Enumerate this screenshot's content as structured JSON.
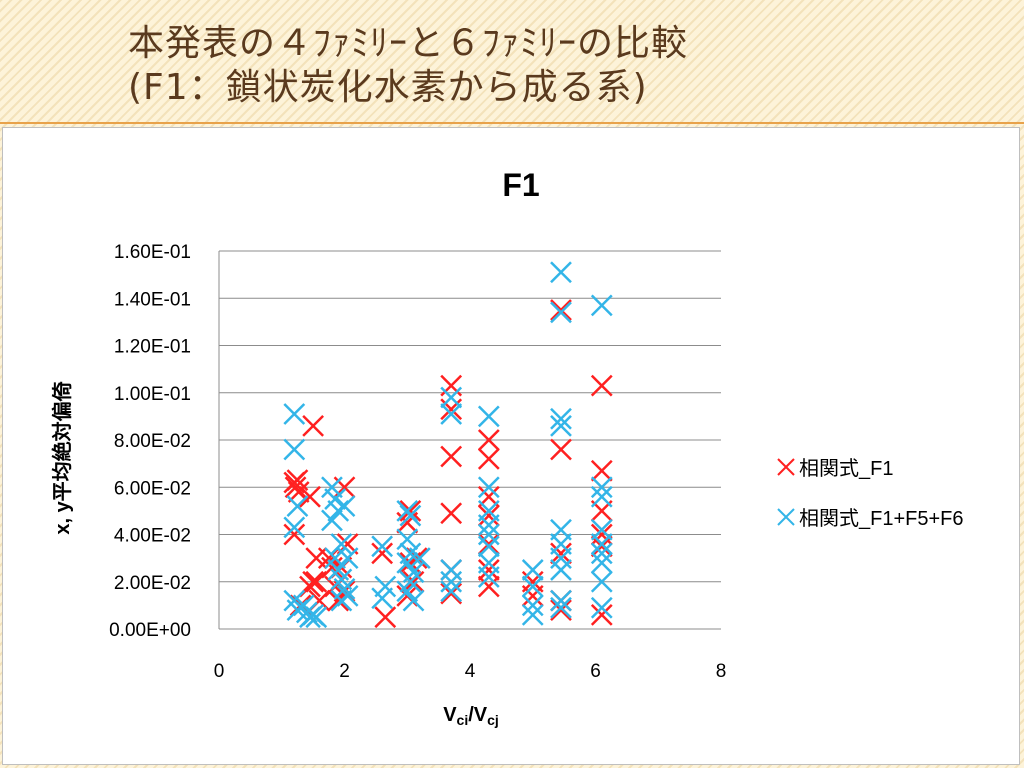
{
  "slide": {
    "title_line1": "本発表の４ﾌｧﾐﾘｰと６ﾌｧﾐﾘｰの比較",
    "title_line2": "(F1：鎖状炭化水素から成る系)"
  },
  "colors": {
    "title": "#5a3a1e",
    "accent_rule": "#e8a24a",
    "series_f1": "#ff2020",
    "series_f1f5f6": "#33b5e8"
  },
  "chart_data": {
    "type": "scatter",
    "title": "F1",
    "xlabel": "Vci/Vcj",
    "ylabel": "x, y平均絶対偏倚",
    "xlim": [
      0,
      8
    ],
    "ylim": [
      0,
      0.16
    ],
    "x_ticks": [
      "0",
      "2",
      "4",
      "6",
      "8"
    ],
    "y_ticks": [
      "0.00E+00",
      "2.00E-02",
      "4.00E-02",
      "6.00E-02",
      "8.00E-02",
      "1.00E-01",
      "1.20E-01",
      "1.40E-01",
      "1.60E-01"
    ],
    "grid": "horizontal",
    "legend_position": "right",
    "marker": "×",
    "series": [
      {
        "name": "相関式_F1",
        "color": "#ff2020",
        "points": [
          [
            1.2,
            0.062
          ],
          [
            1.22,
            0.06
          ],
          [
            1.25,
            0.063
          ],
          [
            1.27,
            0.058
          ],
          [
            1.2,
            0.04
          ],
          [
            1.3,
            0.01
          ],
          [
            1.5,
            0.086
          ],
          [
            1.45,
            0.056
          ],
          [
            1.55,
            0.03
          ],
          [
            1.5,
            0.02
          ],
          [
            1.45,
            0.018
          ],
          [
            1.6,
            0.012
          ],
          [
            1.55,
            0.02
          ],
          [
            1.75,
            0.03
          ],
          [
            1.8,
            0.026
          ],
          [
            1.85,
            0.018
          ],
          [
            1.9,
            0.012
          ],
          [
            1.95,
            0.026
          ],
          [
            2.0,
            0.06
          ],
          [
            2.05,
            0.036
          ],
          [
            2.0,
            0.016
          ],
          [
            2.6,
            0.032
          ],
          [
            2.65,
            0.005
          ],
          [
            3.05,
            0.05
          ],
          [
            3.0,
            0.045
          ],
          [
            3.05,
            0.028
          ],
          [
            3.1,
            0.02
          ],
          [
            3.0,
            0.014
          ],
          [
            3.15,
            0.03
          ],
          [
            3.7,
            0.103
          ],
          [
            3.7,
            0.093
          ],
          [
            3.7,
            0.073
          ],
          [
            3.7,
            0.049
          ],
          [
            3.7,
            0.025
          ],
          [
            3.7,
            0.015
          ],
          [
            4.3,
            0.08
          ],
          [
            4.3,
            0.072
          ],
          [
            4.3,
            0.056
          ],
          [
            4.3,
            0.048
          ],
          [
            4.3,
            0.036
          ],
          [
            4.3,
            0.025
          ],
          [
            4.3,
            0.018
          ],
          [
            5.0,
            0.02
          ],
          [
            5.0,
            0.014
          ],
          [
            5.45,
            0.135
          ],
          [
            5.45,
            0.076
          ],
          [
            5.45,
            0.032
          ],
          [
            5.45,
            0.012
          ],
          [
            5.45,
            0.008
          ],
          [
            6.1,
            0.103
          ],
          [
            6.1,
            0.067
          ],
          [
            6.1,
            0.05
          ],
          [
            6.1,
            0.04
          ],
          [
            6.1,
            0.035
          ],
          [
            6.1,
            0.006
          ]
        ]
      },
      {
        "name": "相関式_F1+F5+F6",
        "color": "#33b5e8",
        "points": [
          [
            1.2,
            0.091
          ],
          [
            1.2,
            0.076
          ],
          [
            1.25,
            0.052
          ],
          [
            1.2,
            0.043
          ],
          [
            1.2,
            0.012
          ],
          [
            1.25,
            0.008
          ],
          [
            1.35,
            0.01
          ],
          [
            1.4,
            0.007
          ],
          [
            1.45,
            0.005
          ],
          [
            1.5,
            0.006
          ],
          [
            1.55,
            0.005
          ],
          [
            1.8,
            0.06
          ],
          [
            1.85,
            0.055
          ],
          [
            1.9,
            0.05
          ],
          [
            1.8,
            0.046
          ],
          [
            2.0,
            0.052
          ],
          [
            1.95,
            0.036
          ],
          [
            1.85,
            0.03
          ],
          [
            1.9,
            0.025
          ],
          [
            1.95,
            0.021
          ],
          [
            2.0,
            0.017
          ],
          [
            2.05,
            0.014
          ],
          [
            1.95,
            0.012
          ],
          [
            2.05,
            0.03
          ],
          [
            2.6,
            0.035
          ],
          [
            2.65,
            0.018
          ],
          [
            2.6,
            0.013
          ],
          [
            3.0,
            0.05
          ],
          [
            3.05,
            0.048
          ],
          [
            3.0,
            0.038
          ],
          [
            3.05,
            0.032
          ],
          [
            3.0,
            0.028
          ],
          [
            3.1,
            0.024
          ],
          [
            3.05,
            0.02
          ],
          [
            3.0,
            0.016
          ],
          [
            3.1,
            0.012
          ],
          [
            3.2,
            0.03
          ],
          [
            3.7,
            0.098
          ],
          [
            3.7,
            0.091
          ],
          [
            3.7,
            0.025
          ],
          [
            3.7,
            0.02
          ],
          [
            3.7,
            0.016
          ],
          [
            4.3,
            0.09
          ],
          [
            4.3,
            0.06
          ],
          [
            4.3,
            0.05
          ],
          [
            4.3,
            0.044
          ],
          [
            4.3,
            0.04
          ],
          [
            4.3,
            0.035
          ],
          [
            4.3,
            0.028
          ],
          [
            4.3,
            0.022
          ],
          [
            5.0,
            0.025
          ],
          [
            5.0,
            0.018
          ],
          [
            5.0,
            0.01
          ],
          [
            5.0,
            0.006
          ],
          [
            5.45,
            0.151
          ],
          [
            5.45,
            0.134
          ],
          [
            5.45,
            0.089
          ],
          [
            5.45,
            0.086
          ],
          [
            5.45,
            0.042
          ],
          [
            5.45,
            0.036
          ],
          [
            5.45,
            0.03
          ],
          [
            5.45,
            0.025
          ],
          [
            5.45,
            0.012
          ],
          [
            5.45,
            0.009
          ],
          [
            6.1,
            0.137
          ],
          [
            6.1,
            0.06
          ],
          [
            6.1,
            0.056
          ],
          [
            6.1,
            0.042
          ],
          [
            6.1,
            0.036
          ],
          [
            6.1,
            0.032
          ],
          [
            6.1,
            0.028
          ],
          [
            6.1,
            0.02
          ],
          [
            6.1,
            0.009
          ]
        ]
      }
    ]
  }
}
